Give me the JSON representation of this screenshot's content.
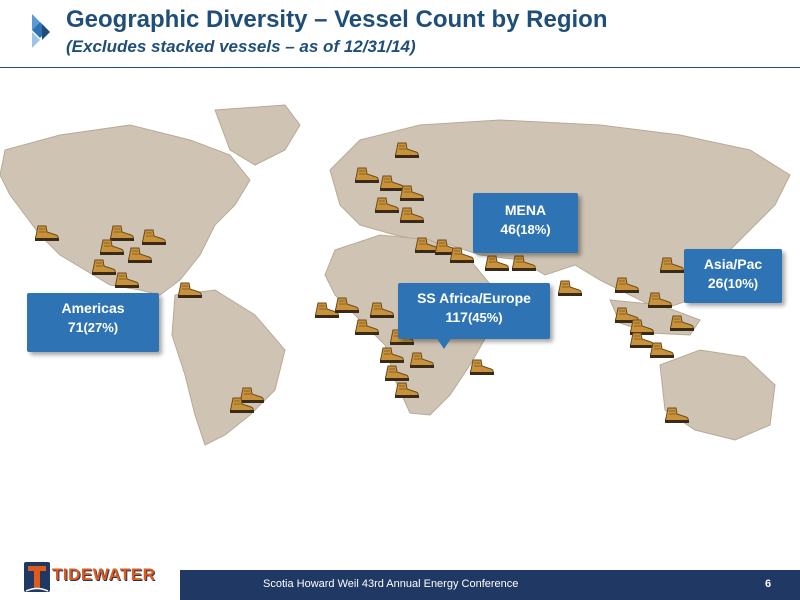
{
  "header": {
    "title": "Geographic Diversity – Vessel Count by Region",
    "subtitle": "(Excludes stacked vessels – as of 12/31/14)"
  },
  "regions": [
    {
      "id": "americas",
      "name": "Americas",
      "count": "71",
      "pct": "(27%)"
    },
    {
      "id": "mena",
      "name": "MENA",
      "count": "46",
      "pct": "(18%)"
    },
    {
      "id": "ss-africa-europe",
      "name": "SS Africa/Europe",
      "count": "117",
      "pct": "(45%)"
    },
    {
      "id": "asia-pac",
      "name": "Asia/Pac",
      "count": "26",
      "pct": "(10%)"
    }
  ],
  "footer": {
    "logo_text": "TIDEWATER",
    "conference": "Scotia Howard Weil 43rd Annual Energy Conference",
    "page": "6"
  },
  "colors": {
    "title_blue": "#1f4e79",
    "callout_blue": "#2e74b5",
    "footer_navy": "#1f3864",
    "logo_orange": "#e05a1a",
    "land": "#cfc4b4",
    "boot": "#c8923a"
  },
  "icons": [
    "diamond-logo-icon",
    "world-map",
    "boot-icon",
    "tidewater-logo"
  ]
}
